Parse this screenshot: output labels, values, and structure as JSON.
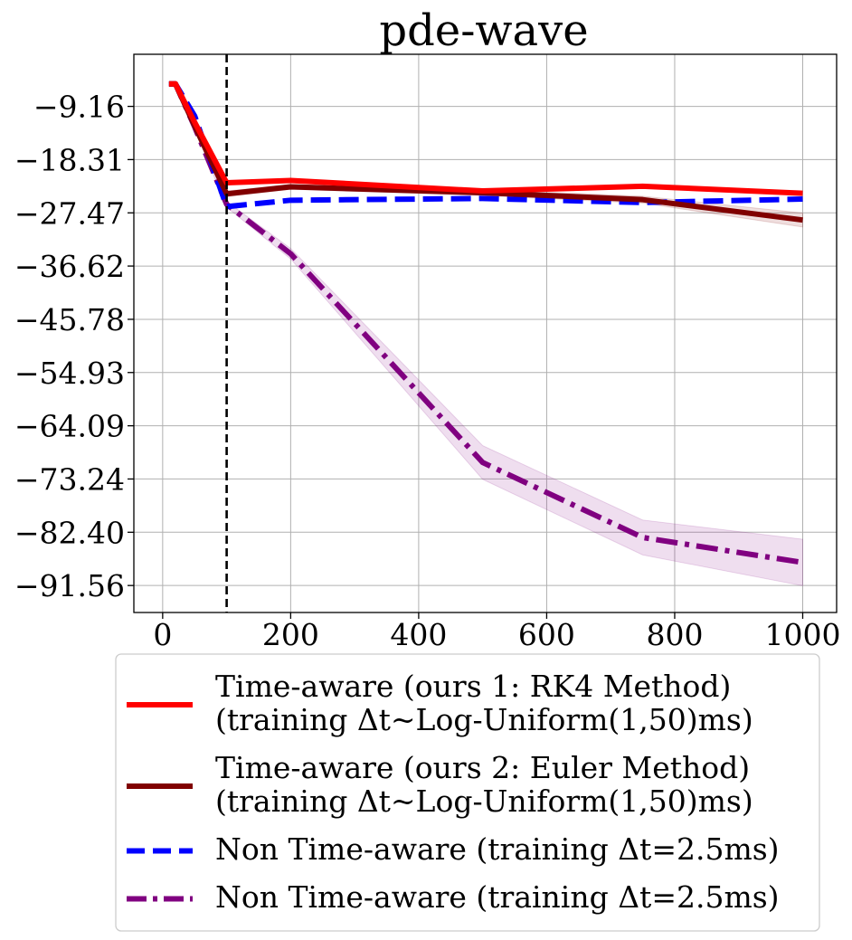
{
  "chart_data": {
    "type": "line",
    "title": "pde-wave",
    "xlabel": "",
    "ylabel": "",
    "xlim": [
      -45,
      1053
    ],
    "ylim": [
      -96.2,
      -0.2
    ],
    "x_ticks": [
      0,
      200,
      400,
      600,
      800,
      1000
    ],
    "x_tick_labels": [
      "0",
      "200",
      "400",
      "600",
      "800",
      "1000"
    ],
    "y_ticks": [
      -9.16,
      -18.31,
      -27.47,
      -36.62,
      -45.78,
      -54.93,
      -64.09,
      -73.24,
      -82.4,
      -91.56
    ],
    "y_tick_labels": [
      "−9.16",
      "−18.31",
      "−27.47",
      "−36.62",
      "−45.78",
      "−54.93",
      "−64.09",
      "−73.24",
      "−82.40",
      "−91.56"
    ],
    "grid": true,
    "vline_x": 100,
    "legend_position": "below",
    "series": [
      {
        "name": "Time-aware (ours 1: RK4 Method)\n(training Δt~Log-Uniform(1,50)ms)",
        "legend_lines": [
          "Time-aware (ours 1: RK4 Method)",
          "(training Δt~Log-Uniform(1,50)ms)"
        ],
        "color": "#ff0000",
        "style": "solid",
        "x": [
          10,
          20,
          50,
          100,
          200,
          500,
          750,
          1000
        ],
        "y": [
          -5.3,
          -5.3,
          -11.9,
          -22.3,
          -21.9,
          -23.7,
          -22.9,
          -24.1
        ]
      },
      {
        "name": "Time-aware (ours 2: Euler Method)\n(training Δt~Log-Uniform(1,50)ms)",
        "legend_lines": [
          "Time-aware (ours 2: Euler Method)",
          "(training Δt~Log-Uniform(1,50)ms)"
        ],
        "color": "#800000",
        "style": "solid",
        "x": [
          10,
          20,
          50,
          100,
          200,
          500,
          750,
          1000
        ],
        "y": [
          -5.3,
          -5.3,
          -12.5,
          -24.2,
          -23.0,
          -24.0,
          -25.2,
          -28.7
        ],
        "band": [
          0.35,
          0.35,
          0.5,
          0.5,
          0.4,
          0.5,
          0.6,
          1.2
        ]
      },
      {
        "name": "Non Time-aware (training Δt=2.5ms)",
        "legend_lines": [
          "Non Time-aware (training Δt=2.5ms)"
        ],
        "color": "#0000ff",
        "style": "dashed",
        "x": [
          10,
          20,
          50,
          100,
          200,
          500,
          750,
          1000
        ],
        "y": [
          -5.3,
          -5.3,
          -10.8,
          -26.4,
          -25.3,
          -25.0,
          -25.7,
          -25.1
        ]
      },
      {
        "name": "Non Time-aware (training Δt=2.5ms)",
        "legend_lines": [
          "Non Time-aware (training Δt=2.5ms)"
        ],
        "color": "#800080",
        "style": "dashdot",
        "x": [
          10,
          20,
          50,
          100,
          200,
          500,
          750,
          1000
        ],
        "y": [
          -5.3,
          -5.3,
          -12.7,
          -26.0,
          -34.5,
          -70.4,
          -83.3,
          -87.6
        ],
        "band": [
          0.3,
          0.3,
          0.4,
          0.5,
          0.9,
          2.9,
          3.0,
          4.0
        ]
      }
    ]
  }
}
